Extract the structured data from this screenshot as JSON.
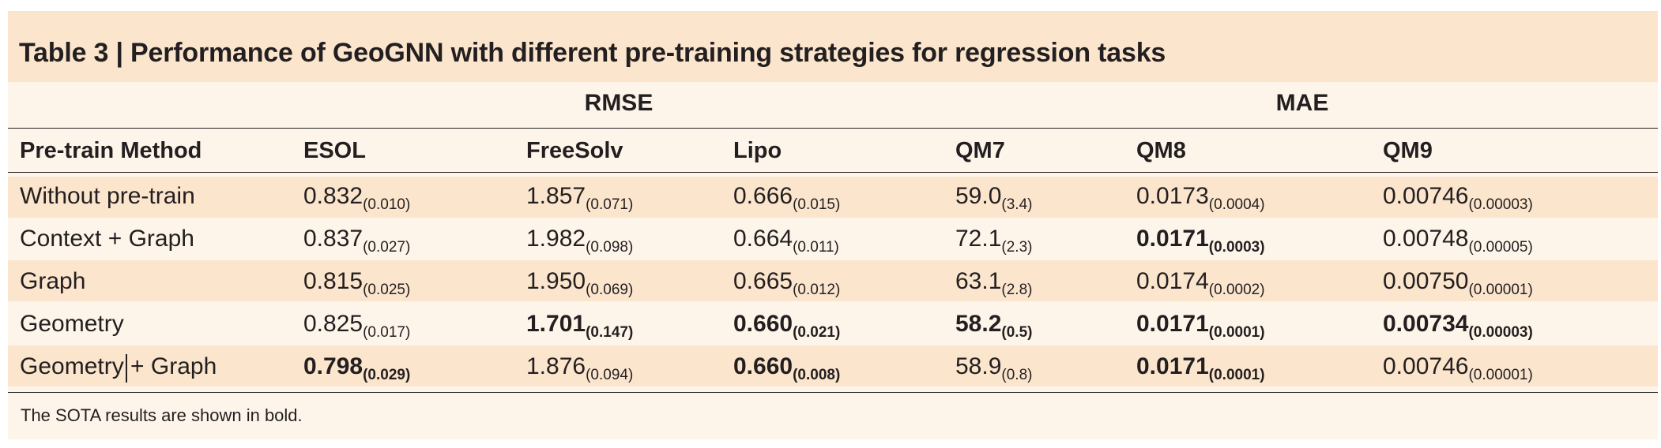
{
  "title": "Table 3 | Performance of GeoGNN with different pre-training strategies for regression tasks",
  "groups": {
    "rmse": "RMSE",
    "mae": "MAE"
  },
  "columns": [
    "Pre-train Method",
    "ESOL",
    "FreeSolv",
    "Lipo",
    "QM7",
    "QM8",
    "QM9"
  ],
  "rows": [
    {
      "method": "Without pre-train",
      "cells": [
        {
          "v": "0.832",
          "s": "(0.010)",
          "b": false
        },
        {
          "v": "1.857",
          "s": "(0.071)",
          "b": false
        },
        {
          "v": "0.666",
          "s": "(0.015)",
          "b": false
        },
        {
          "v": "59.0",
          "s": "(3.4)",
          "b": false
        },
        {
          "v": "0.0173",
          "s": "(0.0004)",
          "b": false
        },
        {
          "v": "0.00746",
          "s": "(0.00003)",
          "b": false
        }
      ]
    },
    {
      "method": "Context + Graph",
      "cells": [
        {
          "v": "0.837",
          "s": "(0.027)",
          "b": false
        },
        {
          "v": "1.982",
          "s": "(0.098)",
          "b": false
        },
        {
          "v": "0.664",
          "s": "(0.011)",
          "b": false
        },
        {
          "v": "72.1",
          "s": "(2.3)",
          "b": false
        },
        {
          "v": "0.0171",
          "s": "(0.0003)",
          "b": true
        },
        {
          "v": "0.00748",
          "s": "(0.00005)",
          "b": false
        }
      ]
    },
    {
      "method": "Graph",
      "cells": [
        {
          "v": "0.815",
          "s": "(0.025)",
          "b": false
        },
        {
          "v": "1.950",
          "s": "(0.069)",
          "b": false
        },
        {
          "v": "0.665",
          "s": "(0.012)",
          "b": false
        },
        {
          "v": "63.1",
          "s": "(2.8)",
          "b": false
        },
        {
          "v": "0.0174",
          "s": "(0.0002)",
          "b": false
        },
        {
          "v": "0.00750",
          "s": "(0.00001)",
          "b": false
        }
      ]
    },
    {
      "method": "Geometry",
      "cells": [
        {
          "v": "0.825",
          "s": "(0.017)",
          "b": false
        },
        {
          "v": "1.701",
          "s": "(0.147)",
          "b": true
        },
        {
          "v": "0.660",
          "s": "(0.021)",
          "b": true
        },
        {
          "v": "58.2",
          "s": "(0.5)",
          "b": true
        },
        {
          "v": "0.0171",
          "s": "(0.0001)",
          "b": true
        },
        {
          "v": "0.00734",
          "s": "(0.00003)",
          "b": true
        }
      ]
    },
    {
      "method": "Geometry + Graph",
      "cells": [
        {
          "v": "0.798",
          "s": "(0.029)",
          "b": true
        },
        {
          "v": "1.876",
          "s": "(0.094)",
          "b": false
        },
        {
          "v": "0.660",
          "s": "(0.008)",
          "b": true
        },
        {
          "v": "58.9",
          "s": "(0.8)",
          "b": false
        },
        {
          "v": "0.0171",
          "s": "(0.0001)",
          "b": true
        },
        {
          "v": "0.00746",
          "s": "(0.00001)",
          "b": false
        }
      ]
    }
  ],
  "footnote": "The SOTA results are shown in bold.",
  "colors": {
    "panel": "#fdf5ea",
    "band": "#fbe5cd",
    "text": "#231f20"
  }
}
